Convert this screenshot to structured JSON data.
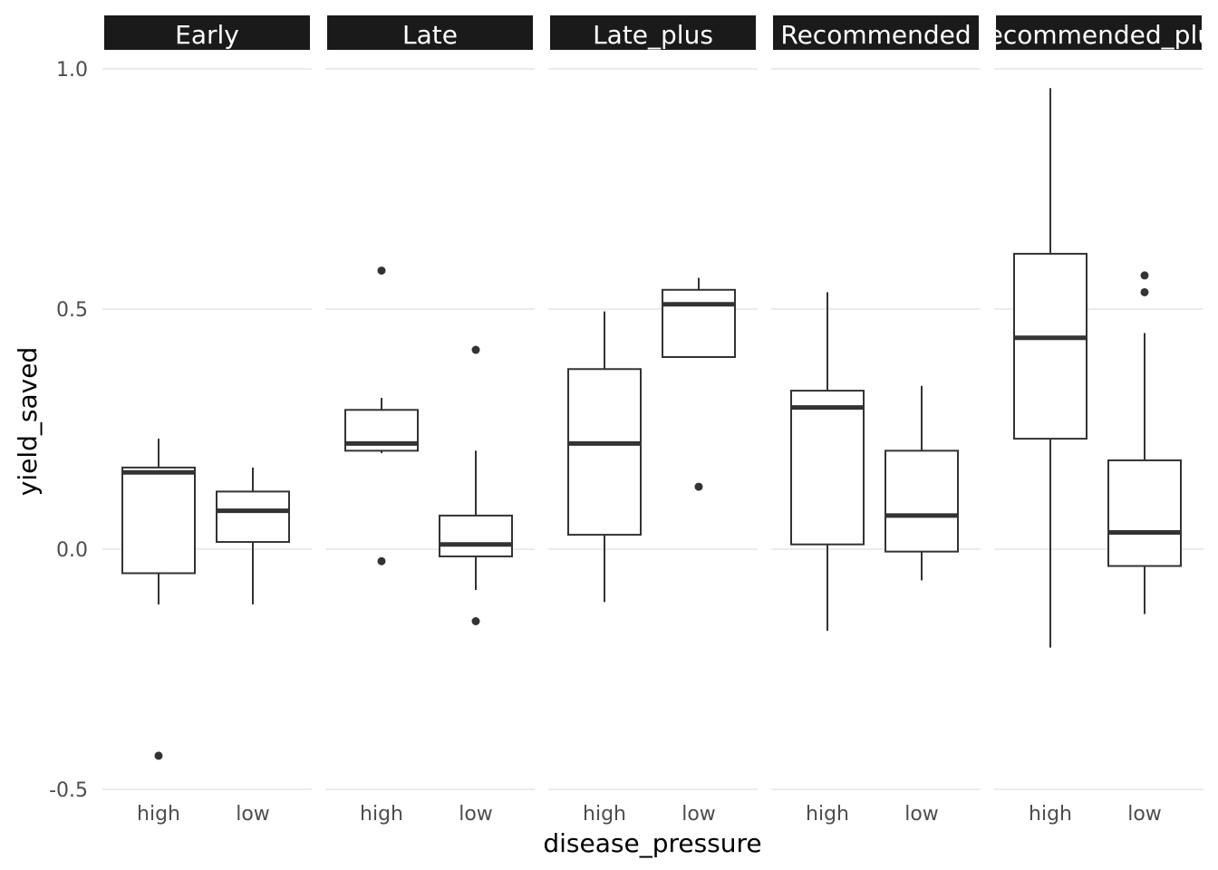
{
  "chart_data": {
    "type": "boxplot",
    "xlabel": "disease_pressure",
    "ylabel": "yield_saved",
    "ylim": [
      -0.5,
      1.0
    ],
    "yticks": [
      -0.5,
      0.0,
      0.5,
      1.0
    ],
    "ytick_labels": [
      "-0.5",
      "0.0",
      "0.5",
      "1.0"
    ],
    "grid": true,
    "categories": [
      "high",
      "low"
    ],
    "facets": [
      {
        "name": "Early",
        "boxes": [
          {
            "category": "high",
            "min": -0.115,
            "q1": -0.05,
            "median": 0.16,
            "q3": 0.17,
            "max": 0.23,
            "outliers": [
              -0.43
            ]
          },
          {
            "category": "low",
            "min": -0.115,
            "q1": 0.015,
            "median": 0.08,
            "q3": 0.12,
            "max": 0.17,
            "outliers": []
          }
        ]
      },
      {
        "name": "Late",
        "boxes": [
          {
            "category": "high",
            "min": 0.2,
            "q1": 0.205,
            "median": 0.22,
            "q3": 0.29,
            "max": 0.315,
            "outliers": [
              0.58,
              -0.025
            ]
          },
          {
            "category": "low",
            "min": -0.085,
            "q1": -0.015,
            "median": 0.01,
            "q3": 0.07,
            "max": 0.205,
            "outliers": [
              0.415,
              -0.15
            ]
          }
        ]
      },
      {
        "name": "Late_plus",
        "boxes": [
          {
            "category": "high",
            "min": -0.11,
            "q1": 0.03,
            "median": 0.22,
            "q3": 0.375,
            "max": 0.495,
            "outliers": []
          },
          {
            "category": "low",
            "min": 0.4,
            "q1": 0.4,
            "median": 0.51,
            "q3": 0.54,
            "max": 0.565,
            "outliers": [
              0.13
            ]
          }
        ]
      },
      {
        "name": "Recommended",
        "boxes": [
          {
            "category": "high",
            "min": -0.17,
            "q1": 0.01,
            "median": 0.295,
            "q3": 0.33,
            "max": 0.535,
            "outliers": []
          },
          {
            "category": "low",
            "min": -0.065,
            "q1": -0.005,
            "median": 0.07,
            "q3": 0.205,
            "max": 0.34,
            "outliers": []
          }
        ]
      },
      {
        "name": "Recommended_plus",
        "boxes": [
          {
            "category": "high",
            "min": -0.205,
            "q1": 0.23,
            "median": 0.44,
            "q3": 0.615,
            "max": 0.96,
            "outliers": []
          },
          {
            "category": "low",
            "min": -0.135,
            "q1": -0.035,
            "median": 0.035,
            "q3": 0.185,
            "max": 0.45,
            "outliers": [
              0.57,
              0.535
            ]
          }
        ]
      }
    ]
  }
}
